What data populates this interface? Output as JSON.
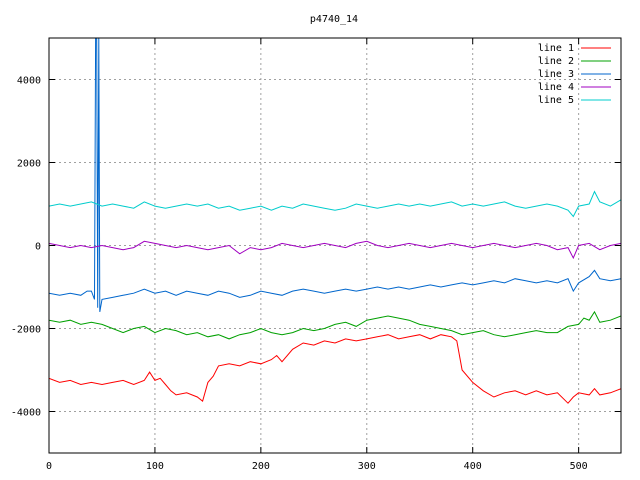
{
  "chart_data": {
    "type": "line",
    "title": "p4740_14",
    "xlabel": "",
    "ylabel": "",
    "xlim": [
      0,
      540
    ],
    "ylim": [
      -5000,
      5000
    ],
    "x_ticks": [
      0,
      100,
      200,
      300,
      400,
      500
    ],
    "y_ticks": [
      -4000,
      -2000,
      0,
      2000,
      4000
    ],
    "x_tick_labels": [
      "0",
      "100",
      "200",
      "300",
      "400",
      "500"
    ],
    "y_tick_labels": [
      "-4000",
      "-2000",
      "0",
      "2000",
      "4000"
    ],
    "grid": true,
    "legend_position": "top-right",
    "series": [
      {
        "name": "line 1",
        "color": "#ff0000",
        "points": [
          [
            0,
            -3200
          ],
          [
            10,
            -3300
          ],
          [
            20,
            -3250
          ],
          [
            30,
            -3350
          ],
          [
            40,
            -3300
          ],
          [
            50,
            -3350
          ],
          [
            60,
            -3300
          ],
          [
            70,
            -3250
          ],
          [
            80,
            -3350
          ],
          [
            90,
            -3250
          ],
          [
            95,
            -3050
          ],
          [
            100,
            -3250
          ],
          [
            105,
            -3200
          ],
          [
            110,
            -3350
          ],
          [
            115,
            -3500
          ],
          [
            120,
            -3600
          ],
          [
            130,
            -3550
          ],
          [
            140,
            -3650
          ],
          [
            145,
            -3750
          ],
          [
            150,
            -3300
          ],
          [
            155,
            -3150
          ],
          [
            160,
            -2900
          ],
          [
            170,
            -2850
          ],
          [
            180,
            -2900
          ],
          [
            190,
            -2800
          ],
          [
            200,
            -2850
          ],
          [
            210,
            -2750
          ],
          [
            215,
            -2650
          ],
          [
            220,
            -2800
          ],
          [
            230,
            -2500
          ],
          [
            240,
            -2350
          ],
          [
            250,
            -2400
          ],
          [
            260,
            -2300
          ],
          [
            270,
            -2350
          ],
          [
            280,
            -2250
          ],
          [
            290,
            -2300
          ],
          [
            300,
            -2250
          ],
          [
            310,
            -2200
          ],
          [
            320,
            -2150
          ],
          [
            330,
            -2250
          ],
          [
            340,
            -2200
          ],
          [
            350,
            -2150
          ],
          [
            360,
            -2250
          ],
          [
            370,
            -2150
          ],
          [
            380,
            -2200
          ],
          [
            385,
            -2300
          ],
          [
            390,
            -3000
          ],
          [
            400,
            -3300
          ],
          [
            410,
            -3500
          ],
          [
            420,
            -3650
          ],
          [
            430,
            -3550
          ],
          [
            440,
            -3500
          ],
          [
            450,
            -3600
          ],
          [
            460,
            -3500
          ],
          [
            470,
            -3600
          ],
          [
            480,
            -3550
          ],
          [
            490,
            -3800
          ],
          [
            495,
            -3650
          ],
          [
            500,
            -3550
          ],
          [
            510,
            -3600
          ],
          [
            515,
            -3450
          ],
          [
            520,
            -3600
          ],
          [
            530,
            -3550
          ],
          [
            540,
            -3450
          ]
        ]
      },
      {
        "name": "line 2",
        "color": "#00a000",
        "points": [
          [
            0,
            -1800
          ],
          [
            10,
            -1850
          ],
          [
            20,
            -1800
          ],
          [
            30,
            -1900
          ],
          [
            40,
            -1850
          ],
          [
            50,
            -1900
          ],
          [
            60,
            -2000
          ],
          [
            70,
            -2100
          ],
          [
            80,
            -2000
          ],
          [
            90,
            -1950
          ],
          [
            100,
            -2100
          ],
          [
            110,
            -2000
          ],
          [
            120,
            -2050
          ],
          [
            130,
            -2150
          ],
          [
            140,
            -2100
          ],
          [
            150,
            -2200
          ],
          [
            160,
            -2150
          ],
          [
            170,
            -2250
          ],
          [
            180,
            -2150
          ],
          [
            190,
            -2100
          ],
          [
            200,
            -2000
          ],
          [
            210,
            -2100
          ],
          [
            220,
            -2150
          ],
          [
            230,
            -2100
          ],
          [
            240,
            -2000
          ],
          [
            250,
            -2050
          ],
          [
            260,
            -2000
          ],
          [
            270,
            -1900
          ],
          [
            280,
            -1850
          ],
          [
            290,
            -1950
          ],
          [
            300,
            -1800
          ],
          [
            310,
            -1750
          ],
          [
            320,
            -1700
          ],
          [
            330,
            -1750
          ],
          [
            340,
            -1800
          ],
          [
            350,
            -1900
          ],
          [
            360,
            -1950
          ],
          [
            370,
            -2000
          ],
          [
            380,
            -2050
          ],
          [
            390,
            -2150
          ],
          [
            400,
            -2100
          ],
          [
            410,
            -2050
          ],
          [
            420,
            -2150
          ],
          [
            430,
            -2200
          ],
          [
            440,
            -2150
          ],
          [
            450,
            -2100
          ],
          [
            460,
            -2050
          ],
          [
            470,
            -2100
          ],
          [
            480,
            -2100
          ],
          [
            490,
            -1950
          ],
          [
            500,
            -1900
          ],
          [
            505,
            -1750
          ],
          [
            510,
            -1800
          ],
          [
            515,
            -1600
          ],
          [
            520,
            -1850
          ],
          [
            530,
            -1800
          ],
          [
            540,
            -1700
          ]
        ]
      },
      {
        "name": "line 3",
        "color": "#0066cc",
        "points": [
          [
            0,
            -1150
          ],
          [
            10,
            -1200
          ],
          [
            20,
            -1150
          ],
          [
            30,
            -1200
          ],
          [
            36,
            -1100
          ],
          [
            40,
            -1100
          ],
          [
            43,
            -1300
          ],
          [
            44,
            5000
          ],
          [
            45,
            5000
          ],
          [
            46,
            -1500
          ],
          [
            47,
            5000
          ],
          [
            48,
            -1600
          ],
          [
            50,
            -1300
          ],
          [
            60,
            -1250
          ],
          [
            70,
            -1200
          ],
          [
            80,
            -1150
          ],
          [
            90,
            -1050
          ],
          [
            100,
            -1150
          ],
          [
            110,
            -1100
          ],
          [
            120,
            -1200
          ],
          [
            130,
            -1100
          ],
          [
            140,
            -1150
          ],
          [
            150,
            -1200
          ],
          [
            160,
            -1100
          ],
          [
            170,
            -1150
          ],
          [
            180,
            -1250
          ],
          [
            190,
            -1200
          ],
          [
            200,
            -1100
          ],
          [
            210,
            -1150
          ],
          [
            220,
            -1200
          ],
          [
            230,
            -1100
          ],
          [
            240,
            -1050
          ],
          [
            250,
            -1100
          ],
          [
            260,
            -1150
          ],
          [
            270,
            -1100
          ],
          [
            280,
            -1050
          ],
          [
            290,
            -1100
          ],
          [
            300,
            -1050
          ],
          [
            310,
            -1000
          ],
          [
            320,
            -1050
          ],
          [
            330,
            -1000
          ],
          [
            340,
            -1050
          ],
          [
            350,
            -1000
          ],
          [
            360,
            -950
          ],
          [
            370,
            -1000
          ],
          [
            380,
            -950
          ],
          [
            390,
            -900
          ],
          [
            400,
            -950
          ],
          [
            410,
            -900
          ],
          [
            420,
            -850
          ],
          [
            430,
            -900
          ],
          [
            440,
            -800
          ],
          [
            450,
            -850
          ],
          [
            460,
            -900
          ],
          [
            470,
            -850
          ],
          [
            480,
            -900
          ],
          [
            490,
            -800
          ],
          [
            495,
            -1100
          ],
          [
            500,
            -900
          ],
          [
            510,
            -750
          ],
          [
            515,
            -600
          ],
          [
            520,
            -800
          ],
          [
            530,
            -850
          ],
          [
            540,
            -800
          ]
        ]
      },
      {
        "name": "line 4",
        "color": "#a000c0",
        "points": [
          [
            0,
            50
          ],
          [
            10,
            0
          ],
          [
            20,
            -50
          ],
          [
            30,
            0
          ],
          [
            40,
            -50
          ],
          [
            50,
            0
          ],
          [
            60,
            -50
          ],
          [
            70,
            -100
          ],
          [
            80,
            -50
          ],
          [
            90,
            100
          ],
          [
            100,
            50
          ],
          [
            110,
            0
          ],
          [
            120,
            -50
          ],
          [
            130,
            0
          ],
          [
            140,
            -50
          ],
          [
            150,
            -100
          ],
          [
            160,
            -50
          ],
          [
            170,
            0
          ],
          [
            180,
            -200
          ],
          [
            190,
            -50
          ],
          [
            200,
            -100
          ],
          [
            210,
            -50
          ],
          [
            220,
            50
          ],
          [
            230,
            0
          ],
          [
            240,
            -50
          ],
          [
            250,
            0
          ],
          [
            260,
            50
          ],
          [
            270,
            0
          ],
          [
            280,
            -50
          ],
          [
            290,
            50
          ],
          [
            300,
            100
          ],
          [
            310,
            0
          ],
          [
            320,
            -50
          ],
          [
            330,
            0
          ],
          [
            340,
            50
          ],
          [
            350,
            0
          ],
          [
            360,
            -50
          ],
          [
            370,
            0
          ],
          [
            380,
            50
          ],
          [
            390,
            0
          ],
          [
            400,
            -50
          ],
          [
            410,
            0
          ],
          [
            420,
            50
          ],
          [
            430,
            0
          ],
          [
            440,
            -50
          ],
          [
            450,
            0
          ],
          [
            460,
            50
          ],
          [
            470,
            0
          ],
          [
            480,
            -100
          ],
          [
            490,
            -50
          ],
          [
            495,
            -300
          ],
          [
            500,
            0
          ],
          [
            510,
            50
          ],
          [
            520,
            -100
          ],
          [
            530,
            0
          ],
          [
            540,
            50
          ]
        ]
      },
      {
        "name": "line 5",
        "color": "#00cccc",
        "points": [
          [
            0,
            950
          ],
          [
            10,
            1000
          ],
          [
            20,
            950
          ],
          [
            30,
            1000
          ],
          [
            40,
            1050
          ],
          [
            50,
            950
          ],
          [
            60,
            1000
          ],
          [
            70,
            950
          ],
          [
            80,
            900
          ],
          [
            90,
            1050
          ],
          [
            100,
            950
          ],
          [
            110,
            900
          ],
          [
            120,
            950
          ],
          [
            130,
            1000
          ],
          [
            140,
            950
          ],
          [
            150,
            1000
          ],
          [
            160,
            900
          ],
          [
            170,
            950
          ],
          [
            180,
            850
          ],
          [
            190,
            900
          ],
          [
            200,
            950
          ],
          [
            210,
            850
          ],
          [
            220,
            950
          ],
          [
            230,
            900
          ],
          [
            240,
            1000
          ],
          [
            250,
            950
          ],
          [
            260,
            900
          ],
          [
            270,
            850
          ],
          [
            280,
            900
          ],
          [
            290,
            1000
          ],
          [
            300,
            950
          ],
          [
            310,
            900
          ],
          [
            320,
            950
          ],
          [
            330,
            1000
          ],
          [
            340,
            950
          ],
          [
            350,
            1000
          ],
          [
            360,
            950
          ],
          [
            370,
            1000
          ],
          [
            380,
            1050
          ],
          [
            390,
            950
          ],
          [
            400,
            1000
          ],
          [
            410,
            950
          ],
          [
            420,
            1000
          ],
          [
            430,
            1050
          ],
          [
            440,
            950
          ],
          [
            450,
            900
          ],
          [
            460,
            950
          ],
          [
            470,
            1000
          ],
          [
            480,
            950
          ],
          [
            490,
            850
          ],
          [
            495,
            700
          ],
          [
            500,
            950
          ],
          [
            510,
            1000
          ],
          [
            515,
            1300
          ],
          [
            520,
            1050
          ],
          [
            530,
            950
          ],
          [
            540,
            1100
          ]
        ]
      }
    ]
  }
}
